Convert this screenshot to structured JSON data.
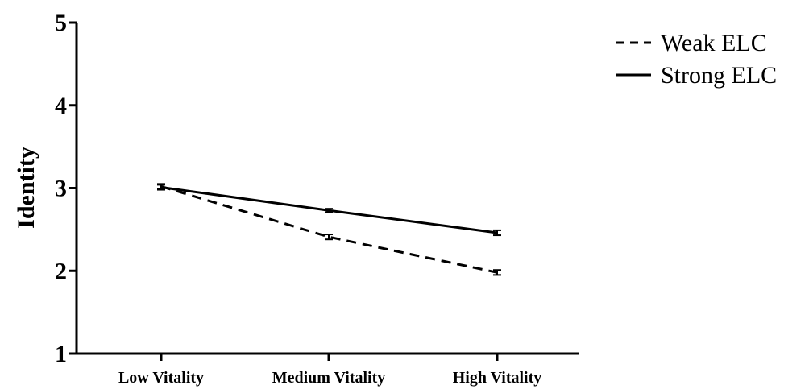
{
  "chart_data": {
    "type": "line",
    "categories": [
      "Low Vitality",
      "Medium Vitality",
      "High Vitality"
    ],
    "series": [
      {
        "name": "Weak ELC",
        "values": [
          3.02,
          2.41,
          1.98
        ],
        "style": "dashed",
        "error": [
          0.03,
          0.03,
          0.03
        ]
      },
      {
        "name": "Strong ELC",
        "values": [
          3.01,
          2.73,
          2.46
        ],
        "style": "solid",
        "error": [
          0.03,
          0.02,
          0.03
        ]
      }
    ],
    "ylabel": "Identity",
    "xlabel": "",
    "title": "",
    "ylim": [
      1,
      5
    ],
    "yticks": [
      "1",
      "2",
      "3",
      "4",
      "5"
    ],
    "grid": false,
    "legend": "top-right",
    "color": "#000000"
  }
}
